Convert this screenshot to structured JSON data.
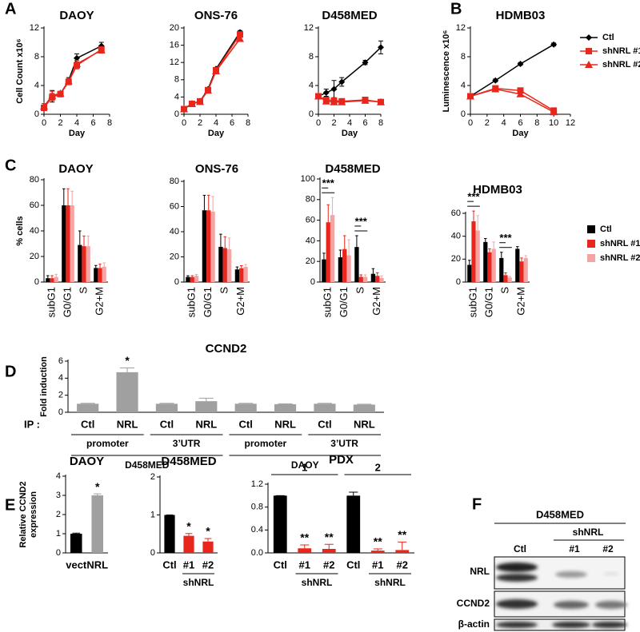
{
  "chart_data": [
    {
      "type": "line",
      "panel": "A",
      "title": "DAOY",
      "ylabel": [
        "Cell Count x10⁶"
      ],
      "xlabel": "Day",
      "x": [
        0,
        1,
        2,
        3,
        4,
        7
      ],
      "xlim": [
        0,
        8
      ],
      "xticks": [
        0,
        2,
        4,
        6,
        8
      ],
      "ylim": [
        0,
        12
      ],
      "yticks": [
        0,
        4,
        8,
        12
      ],
      "series": [
        {
          "color": "#000000",
          "marker": "diamond",
          "values": [
            1.0,
            2.5,
            2.8,
            4.7,
            7.8,
            9.5
          ],
          "errors": [
            0.5,
            0.8,
            0.3,
            0.4,
            0.6,
            0.5
          ]
        },
        {
          "color": "#e8261c",
          "marker": "square",
          "values": [
            0.9,
            2.4,
            2.8,
            4.5,
            6.8,
            9.0
          ],
          "errors": [
            0.4,
            0.5,
            0.3,
            0.4,
            0.5,
            0.4
          ]
        },
        {
          "color": "#e8261c",
          "marker": "triangle",
          "values": [
            1.1,
            2.6,
            2.9,
            4.6,
            7.0,
            8.9
          ],
          "errors": [
            0.4,
            0.6,
            0.3,
            0.3,
            0.5,
            0.4
          ]
        }
      ]
    },
    {
      "type": "line",
      "title": "ONS-76",
      "xlabel": "Day",
      "x": [
        0,
        1,
        2,
        3,
        4,
        7
      ],
      "xlim": [
        0,
        8
      ],
      "xticks": [
        0,
        2,
        4,
        6,
        8
      ],
      "ylim": [
        0,
        20
      ],
      "yticks": [
        0,
        4,
        8,
        12,
        16,
        20
      ],
      "series": [
        {
          "color": "#000000",
          "marker": "diamond",
          "values": [
            1.2,
            2.5,
            3.0,
            5.8,
            10.5,
            19.0
          ],
          "errors": [
            0.2,
            0.2,
            0.2,
            0.3,
            0.3,
            0.4
          ]
        },
        {
          "color": "#e8261c",
          "marker": "square",
          "values": [
            1.2,
            2.4,
            3.0,
            5.6,
            10.2,
            18.5
          ],
          "errors": [
            0.2,
            0.2,
            0.2,
            0.3,
            0.3,
            0.4
          ]
        },
        {
          "color": "#e8261c",
          "marker": "triangle",
          "values": [
            1.2,
            2.4,
            2.9,
            5.5,
            10.0,
            17.5
          ],
          "errors": [
            0.2,
            0.2,
            0.2,
            0.3,
            0.3,
            0.4
          ]
        }
      ]
    },
    {
      "type": "line",
      "title": "D458MED",
      "xlabel": "Day",
      "x": [
        0,
        1,
        2,
        3,
        6,
        8
      ],
      "xlim": [
        0,
        8
      ],
      "xticks": [
        0,
        2,
        4,
        6,
        8
      ],
      "ylim": [
        0,
        12
      ],
      "yticks": [
        0,
        4,
        8,
        12
      ],
      "series": [
        {
          "color": "#000000",
          "marker": "diamond",
          "values": [
            2.5,
            3.0,
            3.5,
            4.5,
            7.2,
            9.3
          ],
          "errors": [
            0.3,
            0.5,
            1.2,
            0.6,
            0.3,
            0.9
          ]
        },
        {
          "color": "#e8261c",
          "marker": "square",
          "values": [
            2.5,
            2.0,
            1.9,
            1.8,
            2.0,
            1.7
          ],
          "errors": [
            0.2,
            0.3,
            0.2,
            0.2,
            0.3,
            0.3
          ]
        },
        {
          "color": "#e8261c",
          "marker": "triangle",
          "values": [
            2.5,
            1.8,
            1.7,
            1.7,
            1.9,
            1.7
          ],
          "errors": [
            0.2,
            0.2,
            0.2,
            0.2,
            0.2,
            0.2
          ]
        }
      ]
    },
    {
      "type": "line",
      "panel": "B",
      "title": "HDMB03",
      "ylabel": [
        "Luminescence x10⁶"
      ],
      "xlabel": "Day",
      "x": [
        0,
        3,
        6,
        10
      ],
      "xlim": [
        0,
        12
      ],
      "xticks": [
        0,
        2,
        4,
        6,
        8,
        10,
        12
      ],
      "ylim": [
        0,
        12
      ],
      "yticks": [
        0,
        4,
        8,
        12
      ],
      "legend": "right",
      "series": [
        {
          "name": "Ctl",
          "color": "#000000",
          "marker": "diamond",
          "values": [
            2.5,
            4.7,
            7.0,
            9.7
          ],
          "errors": [
            0.2,
            0.2,
            0.2,
            0.2
          ]
        },
        {
          "name": "shNRL #1",
          "color": "#e8261c",
          "marker": "square",
          "values": [
            2.5,
            3.6,
            3.3,
            0.5
          ],
          "errors": [
            0.2,
            0.3,
            0.3,
            0.4
          ]
        },
        {
          "name": "shNRL #2",
          "color": "#e8261c",
          "marker": "triangle",
          "values": [
            2.5,
            3.5,
            2.8,
            0.3
          ],
          "errors": [
            0.2,
            0.3,
            0.3,
            0.3
          ]
        }
      ]
    },
    {
      "type": "bar",
      "panel": "C",
      "title": "DAOY",
      "ylabel": [
        "% cells"
      ],
      "categories": [
        "subG1",
        "G0/G1",
        "S",
        "G2+M"
      ],
      "ylim": [
        0,
        80
      ],
      "yticks": [
        0,
        20,
        40,
        60,
        80
      ],
      "series": [
        {
          "color": "#000000",
          "values": [
            3,
            60,
            29,
            11
          ],
          "errors": [
            2,
            13,
            11,
            2
          ]
        },
        {
          "color": "#e8261c",
          "values": [
            3,
            60,
            28,
            11
          ],
          "errors": [
            2,
            13,
            8,
            3
          ]
        },
        {
          "color": "#f5a3a3",
          "values": [
            4,
            60,
            28,
            12
          ],
          "errors": [
            2,
            11,
            8,
            3
          ]
        }
      ]
    },
    {
      "type": "bar",
      "title": "ONS-76",
      "categories": [
        "subG1",
        "G0/G1",
        "S",
        "G2+M"
      ],
      "ylim": [
        0,
        80
      ],
      "yticks": [
        0,
        20,
        40,
        60,
        80
      ],
      "series": [
        {
          "color": "#000000",
          "values": [
            4,
            57,
            28,
            10
          ],
          "errors": [
            1,
            12,
            10,
            2
          ]
        },
        {
          "color": "#e8261c",
          "values": [
            4,
            57,
            27,
            11
          ],
          "errors": [
            1,
            12,
            9,
            2
          ]
        },
        {
          "color": "#f5a3a3",
          "values": [
            5,
            56,
            26,
            12
          ],
          "errors": [
            1,
            12,
            9,
            2
          ]
        }
      ]
    },
    {
      "type": "bar",
      "title": "D458MED",
      "categories": [
        "subG1",
        "G0/G1",
        "S",
        "G2+M"
      ],
      "ylim": [
        0,
        100
      ],
      "yticks": [
        0,
        20,
        40,
        60,
        80,
        100
      ],
      "significance": [
        "***",
        null,
        "***",
        null
      ],
      "series": [
        {
          "color": "#000000",
          "values": [
            22,
            24,
            34,
            8
          ],
          "errors": [
            6,
            7,
            11,
            5
          ]
        },
        {
          "color": "#e8261c",
          "values": [
            58,
            32,
            5,
            6
          ],
          "errors": [
            17,
            13,
            2,
            3
          ]
        },
        {
          "color": "#f5a3a3",
          "values": [
            65,
            26,
            5,
            4
          ],
          "errors": [
            17,
            15,
            2,
            2
          ]
        }
      ]
    },
    {
      "type": "bar",
      "title": "HDMB03",
      "legend": "right",
      "categories": [
        "subG1",
        "G0/G1",
        "S",
        "G2+M"
      ],
      "ylim": [
        0,
        60
      ],
      "yticks": [
        0,
        20,
        40,
        60
      ],
      "significance": [
        "***",
        null,
        "***",
        null
      ],
      "series": [
        {
          "name": "Ctl",
          "color": "#000000",
          "values": [
            15,
            35,
            21,
            29
          ],
          "errors": [
            4,
            3,
            5,
            2
          ]
        },
        {
          "name": "shNRL #1",
          "color": "#e8261c",
          "values": [
            53,
            26,
            6,
            18
          ],
          "errors": [
            9,
            3,
            2,
            3
          ]
        },
        {
          "name": "shNRL #2",
          "color": "#f5a3a3",
          "values": [
            45,
            29,
            4,
            21
          ],
          "errors": [
            13,
            6,
            1,
            2
          ]
        }
      ]
    },
    {
      "type": "bar",
      "panel": "D",
      "title": "CCND2",
      "ylabel": [
        "Fold induction"
      ],
      "x_prefix": "IP :",
      "categories": [
        "Ctl",
        "NRL",
        "Ctl",
        "NRL",
        "Ctl",
        "NRL",
        "Ctl",
        "NRL"
      ],
      "values": [
        1.0,
        4.7,
        1.0,
        1.3,
        1.0,
        0.95,
        1.0,
        0.9
      ],
      "errors": [
        0.05,
        0.5,
        0.05,
        0.35,
        0.05,
        0.05,
        0.05,
        0.05
      ],
      "color": "#a0a0a0",
      "ylim": [
        0,
        6
      ],
      "yticks": [
        0,
        2,
        4,
        6
      ],
      "significance": [
        null,
        "*",
        null,
        null,
        null,
        null,
        null,
        null
      ],
      "group_labels": [
        "promoter",
        "3’UTR",
        "promoter",
        "3’UTR"
      ],
      "outer_labels": [
        "D458MED",
        "DAOY"
      ]
    },
    {
      "type": "bar",
      "panel": "E",
      "title": "DAOY",
      "ylabel": [
        "Relative CCND2",
        "expression"
      ],
      "categories": [
        "vect",
        "NRL"
      ],
      "values": [
        1,
        3
      ],
      "errors": [
        0.03,
        0.08
      ],
      "colors": [
        "#000000",
        "#a0a0a0"
      ],
      "ylim": [
        0,
        4
      ],
      "yticks": [
        0,
        1,
        2,
        3,
        4
      ],
      "significance": [
        null,
        "*"
      ]
    },
    {
      "type": "bar",
      "title": "D458MED",
      "categories": [
        "Ctl",
        "#1",
        "#2"
      ],
      "values": [
        1,
        0.45,
        0.3
      ],
      "errors": [
        0,
        0.06,
        0.08
      ],
      "colors": [
        "#000000",
        "#e8261c",
        "#e8261c"
      ],
      "ylim": [
        0,
        2
      ],
      "yticks": [
        0,
        1,
        2
      ],
      "significance": [
        null,
        "*",
        "*"
      ],
      "group_labels": [
        "shNRL"
      ]
    },
    {
      "type": "bar",
      "title": "PDX",
      "categories": [
        "Ctl",
        "#1",
        "#2",
        "Ctl",
        "#1",
        "#2"
      ],
      "values": [
        1.0,
        0.08,
        0.07,
        1.0,
        0.04,
        0.05
      ],
      "errors": [
        0,
        0.06,
        0.08,
        0.06,
        0.03,
        0.14
      ],
      "colors": [
        "#000000",
        "#e8261c",
        "#e8261c",
        "#000000",
        "#e8261c",
        "#e8261c"
      ],
      "ylim": [
        0,
        1.2
      ],
      "yticks": [
        {
          "value": 0,
          "label": "0.0"
        },
        0.4,
        0.8,
        1.2
      ],
      "significance": [
        null,
        "**",
        "**",
        null,
        "**",
        "**"
      ],
      "top_groups": [
        "1",
        "2"
      ],
      "group_labels": [
        "shNRL",
        "shNRL"
      ]
    }
  ],
  "blot": {
    "panel": "F",
    "title": "D458MED",
    "group": "shNRL",
    "lanes": [
      "Ctl",
      "#1",
      "#2"
    ],
    "rows": [
      "NRL",
      "CCND2",
      "β-actin"
    ]
  }
}
